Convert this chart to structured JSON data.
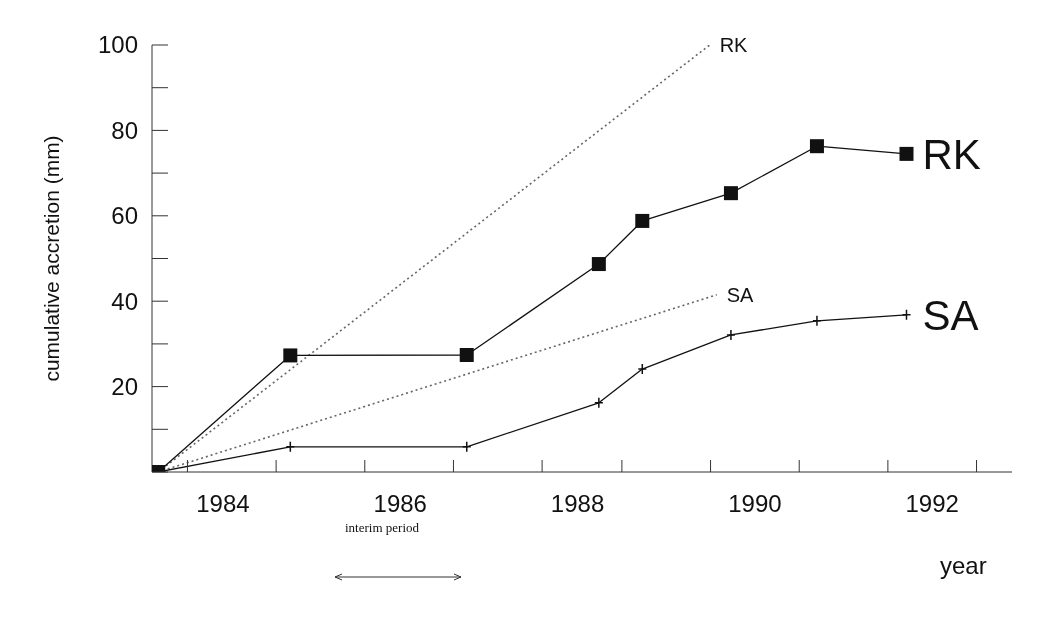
{
  "chart_data": {
    "type": "line",
    "xlabel": "year",
    "ylabel": "cumulative accretion (mm)",
    "xlim": [
      1983.2,
      1992.9
    ],
    "xticks": [
      1984,
      1986,
      1988,
      1990,
      1992,
      {
        "value": 1983.6,
        "label": null
      },
      {
        "value": 1984.6,
        "label": null
      },
      {
        "value": 1985.6,
        "label": null
      },
      {
        "value": 1986.6,
        "label": null
      },
      {
        "value": 1987.6,
        "label": null
      },
      {
        "value": 1988.5,
        "label": null
      },
      {
        "value": 1989.5,
        "label": null
      },
      {
        "value": 1990.5,
        "label": null
      },
      {
        "value": 1991.5,
        "label": null
      },
      {
        "value": 1992.5,
        "label": null
      }
    ],
    "ylim": [
      0,
      100
    ],
    "yticks": [
      {
        "value": 0,
        "label": null
      },
      {
        "value": 10,
        "label": null
      },
      20,
      {
        "value": 30,
        "label": null
      },
      40,
      {
        "value": 50,
        "label": null
      },
      60,
      {
        "value": 70,
        "label": null
      },
      80,
      {
        "value": 90,
        "label": null
      },
      100
    ],
    "annotations": [
      "interim period"
    ],
    "series": [
      {
        "name": "RK",
        "color": "#666666",
        "line_style": "dotted",
        "marker": "none",
        "x": [
          1983.27,
          1989.49
        ],
        "values": [
          0,
          100
        ]
      },
      {
        "name": "SA",
        "color": "#666666",
        "line_style": "dotted",
        "marker": "none",
        "x": [
          1983.27,
          1989.57
        ],
        "values": [
          0,
          41.5
        ]
      },
      {
        "name": "RK",
        "color": "#111111",
        "line_style": "solid",
        "marker": "square",
        "x": [
          1983.27,
          1984.76,
          1986.75,
          1988.24,
          1988.73,
          1989.73,
          1990.7,
          1991.71
        ],
        "values": [
          0,
          27.3,
          27.4,
          48.7,
          58.8,
          65.3,
          76.3,
          74.5
        ]
      },
      {
        "name": "SA",
        "color": "#111111",
        "line_style": "solid",
        "marker": "cross",
        "x": [
          1983.27,
          1984.76,
          1986.75,
          1988.24,
          1988.73,
          1989.73,
          1990.7,
          1991.71
        ],
        "values": [
          0,
          5.9,
          5.9,
          16.2,
          24.1,
          32.1,
          35.4,
          36.8
        ]
      }
    ]
  }
}
